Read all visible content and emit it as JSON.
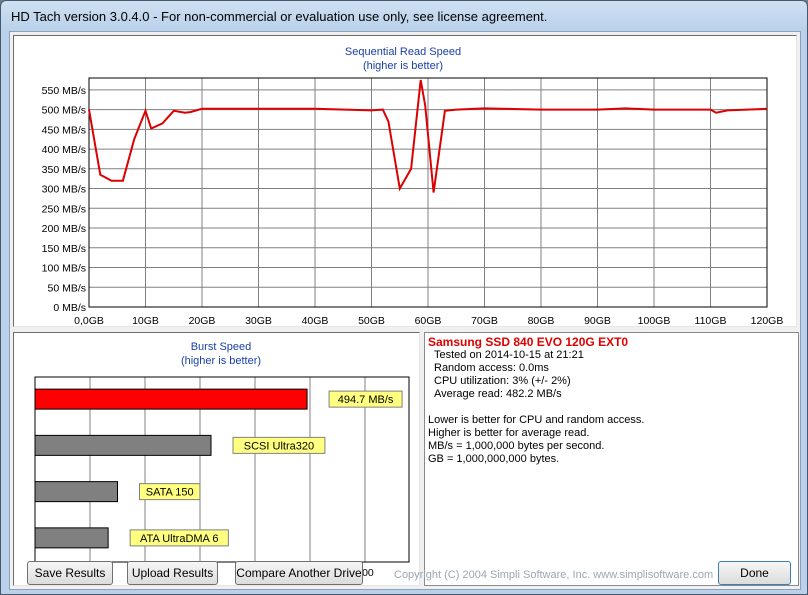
{
  "window": {
    "title": "HD Tach version 3.0.4.0  - For non-commercial or evaluation use only, see license agreement."
  },
  "read_chart": {
    "title": "Sequential Read Speed",
    "subtitle": "(higher is better)",
    "color": "#dd0000",
    "y_labels": [
      "550 MB/s",
      "500 MB/s",
      "450 MB/s",
      "400 MB/s",
      "350 MB/s",
      "300 MB/s",
      "250 MB/s",
      "200 MB/s",
      "150 MB/s",
      "100 MB/s",
      "50 MB/s",
      "0 MB/s"
    ],
    "x_labels": [
      "0,0GB",
      "10GB",
      "20GB",
      "30GB",
      "40GB",
      "50GB",
      "60GB",
      "70GB",
      "80GB",
      "90GB",
      "100GB",
      "110GB",
      "120GB"
    ]
  },
  "chart_data": [
    {
      "type": "line",
      "title": "Sequential Read Speed",
      "subtitle": "(higher is better)",
      "xlabel": "",
      "ylabel": "",
      "xlim": [
        0,
        120
      ],
      "ylim": [
        0,
        580
      ],
      "grid": true,
      "series": [
        {
          "x": [
            0,
            2,
            4,
            6,
            8,
            10,
            11,
            13,
            15,
            17,
            18,
            20,
            30,
            40,
            50,
            52,
            53,
            55,
            57,
            58.7,
            59.5,
            61,
            63,
            65,
            70,
            80,
            90,
            95,
            100,
            110,
            111,
            113,
            120
          ],
          "y": [
            500,
            335,
            320,
            320,
            425,
            497,
            452,
            465,
            497,
            492,
            494,
            502,
            502,
            502,
            498,
            500,
            470,
            300,
            350,
            575,
            510,
            290,
            497,
            500,
            503,
            500,
            500,
            503,
            500,
            500,
            492,
            498,
            502
          ]
        }
      ]
    },
    {
      "type": "bar",
      "title": "Burst Speed",
      "subtitle": "(higher is better)",
      "categories": [
        "494.7 MB/s",
        "SCSI Ultra320",
        "SATA 150",
        "ATA UltraDMA 6"
      ],
      "values": [
        494.7,
        320,
        150,
        133
      ],
      "colors": [
        "#ff0000",
        "#808080",
        "#808080",
        "#808080"
      ],
      "xlim": [
        0,
        680
      ],
      "x_ticks": [
        "0",
        "100",
        "200",
        "300",
        "400",
        "500",
        "600"
      ]
    }
  ],
  "burst_chart": {
    "title": "Burst Speed",
    "subtitle": "(higher is better)"
  },
  "info": {
    "drive_name": "Samsung SSD 840 EVO 120G EXT0",
    "tested_on": "Tested on 2014-10-15 at 21:21",
    "random_access": "Random access: 0.0ms",
    "cpu": "CPU utilization: 3% (+/- 2%)",
    "avg_read": "Average read: 482.2 MB/s",
    "note1": "Lower is better for CPU and random access.",
    "note2": "Higher is better for average read.",
    "note3": "MB/s = 1,000,000 bytes per second.",
    "note4": "GB = 1,000,000,000 bytes."
  },
  "buttons": {
    "save": "Save Results",
    "upload": "Upload Results",
    "compare": "Compare Another Drive",
    "done": "Done"
  },
  "footer": {
    "copyright": "Copyright (C) 2004 Simpli Software, Inc. www.simplisoftware.com"
  }
}
